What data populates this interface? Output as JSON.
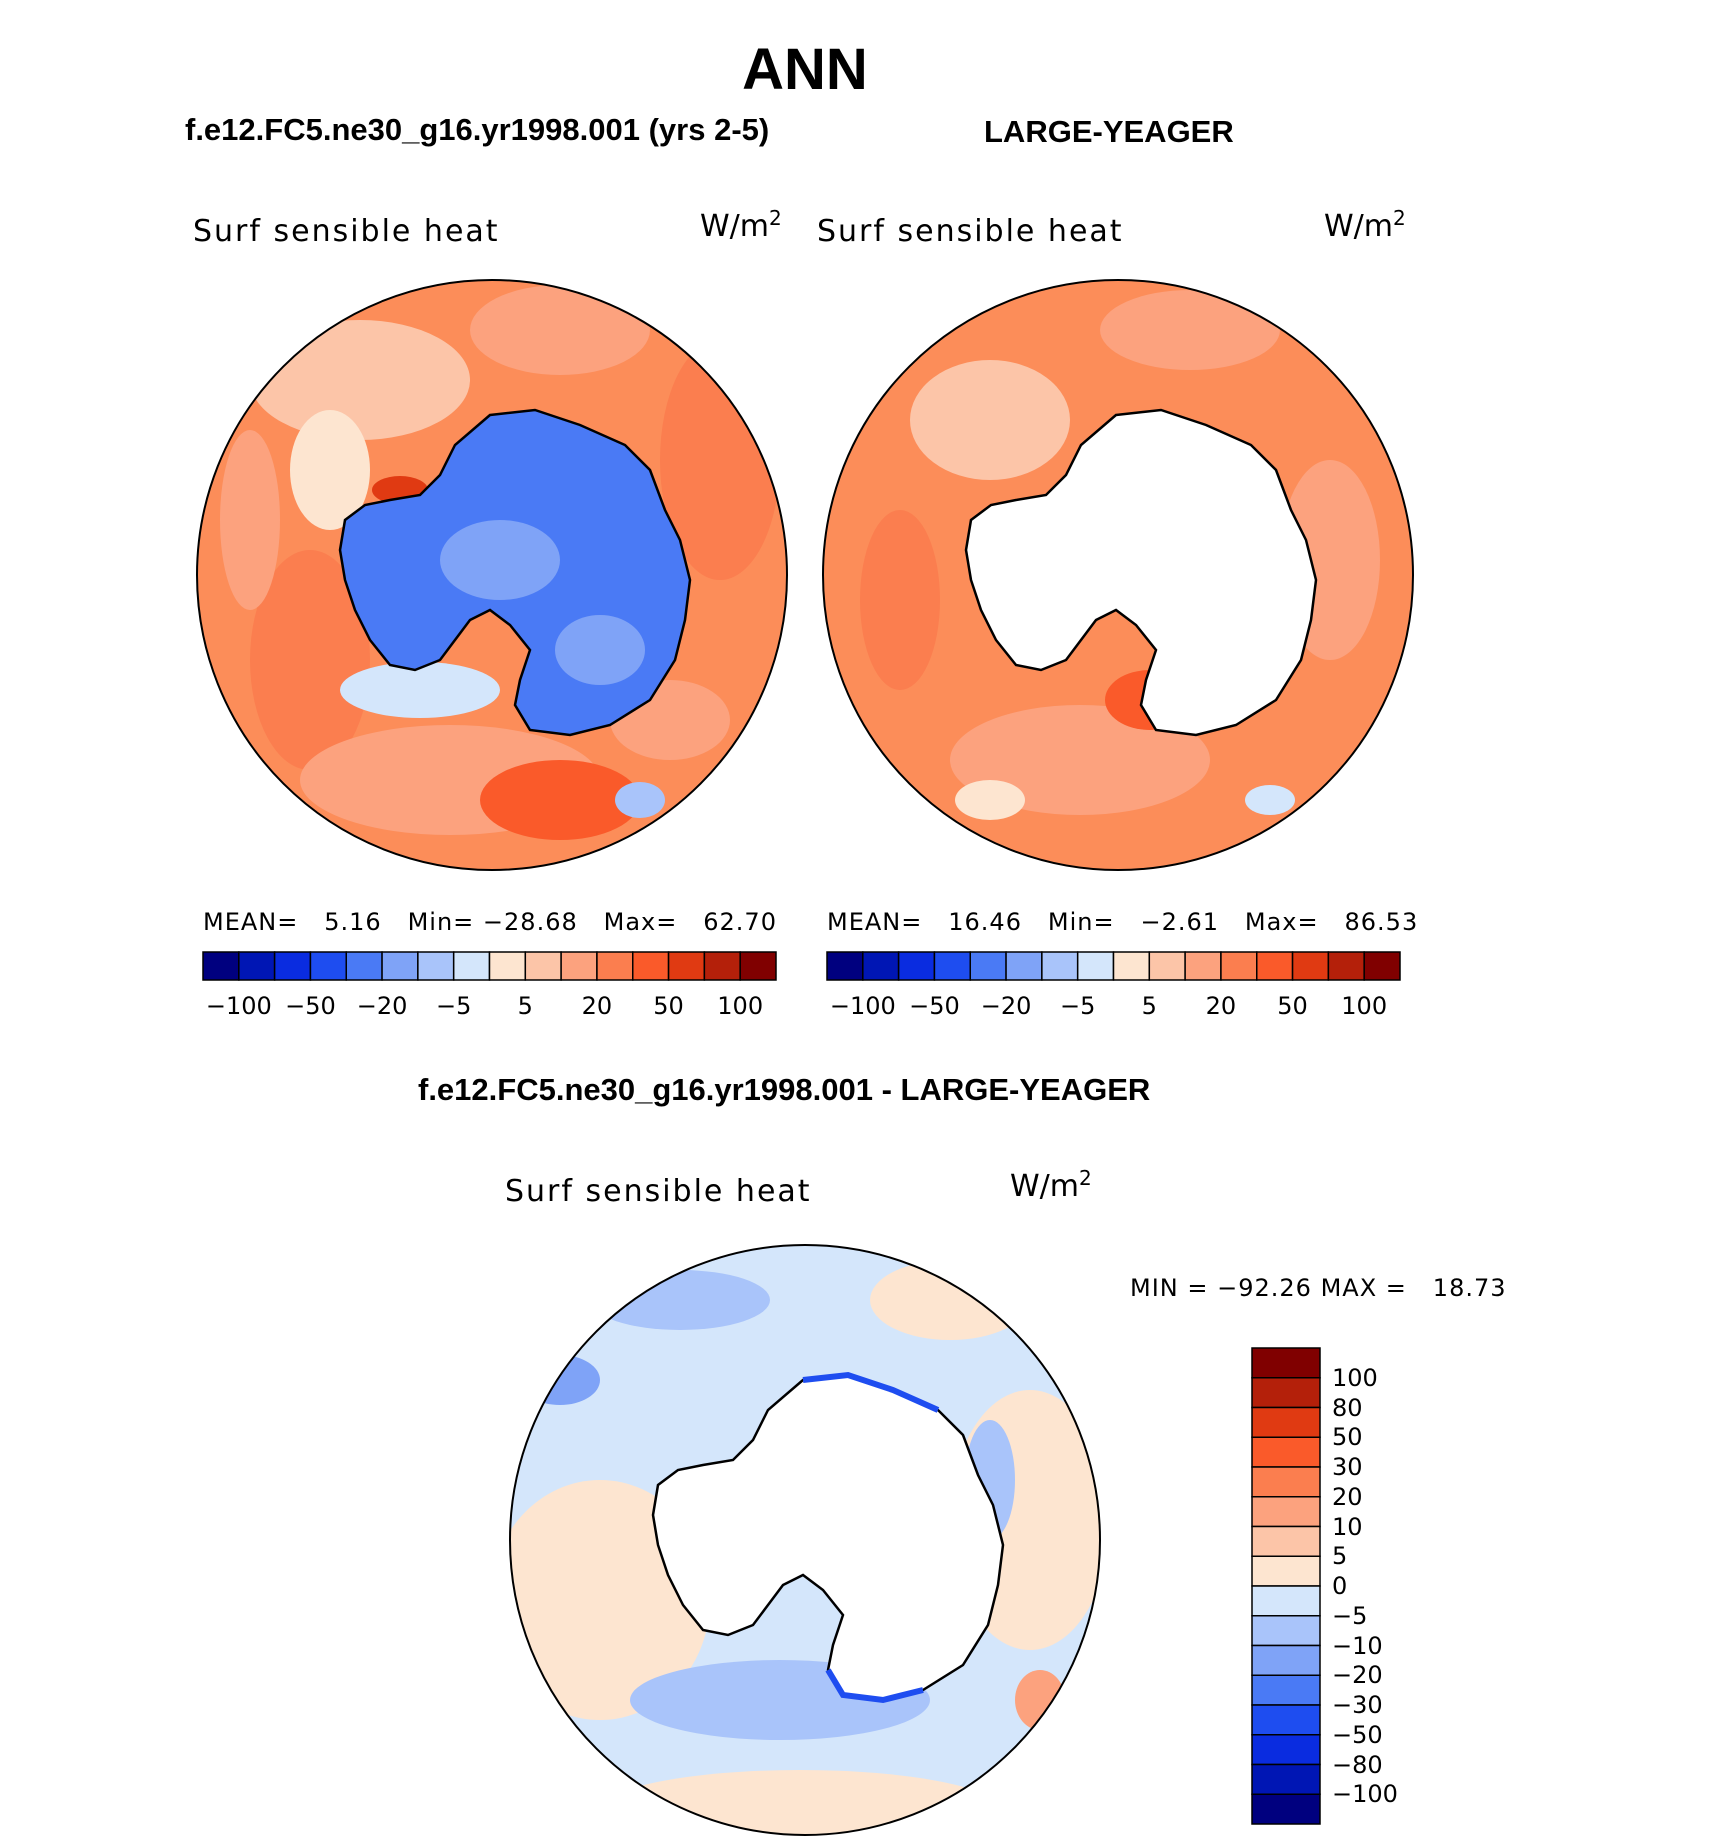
{
  "title": "ANN",
  "panels": [
    {
      "case_title": "f.e12.FC5.ne30_g16.yr1998.001 (yrs 2-5)",
      "variable": "Surf sensible heat",
      "units_base": "W/m",
      "units_exp": "2",
      "stats": {
        "mean_label": "MEAN=",
        "mean": "5.16",
        "min_label": "Min=",
        "min": "−28.68",
        "max_label": "Max=",
        "max": "62.70"
      },
      "ocean_color": "#fc8d59",
      "continent_fill": "#4a7af5"
    },
    {
      "case_title": "LARGE-YEAGER",
      "variable": "Surf sensible heat",
      "units_base": "W/m",
      "units_exp": "2",
      "stats": {
        "mean_label": "MEAN=",
        "mean": "16.46",
        "min_label": "Min=",
        "min": "−2.61",
        "max_label": "Max=",
        "max": "86.53"
      },
      "ocean_color": "#fc8d59",
      "continent_fill": "#ffffff"
    }
  ],
  "top_colorbar": {
    "colors": [
      "#00007f",
      "#0016b4",
      "#0a2ce0",
      "#1e4df0",
      "#4a7af5",
      "#7fa3f7",
      "#a9c4fa",
      "#d4e6fb",
      "#fde5d0",
      "#fcc5a8",
      "#fca27e",
      "#fb7e4f",
      "#fa5a2a",
      "#e03a12",
      "#b4200a",
      "#800000"
    ],
    "tick_labels": [
      "−100",
      "−50",
      "−20",
      "−5",
      "5",
      "20",
      "50",
      "100"
    ]
  },
  "diff_panel": {
    "case_title": "f.e12.FC5.ne30_g16.yr1998.001 - LARGE-YEAGER",
    "variable": "Surf sensible heat",
    "units_base": "W/m",
    "units_exp": "2",
    "stats": {
      "min_label": "MIN =",
      "min": "−92.26",
      "max_label": "MAX =",
      "max": "18.73"
    },
    "ocean_color": "#d4e6fb"
  },
  "diff_colorbar": {
    "colors_top_to_bottom": [
      "#800000",
      "#b4200a",
      "#e03a12",
      "#fa5a2a",
      "#fb7e4f",
      "#fca27e",
      "#fcc5a8",
      "#fde5d0",
      "#d4e6fb",
      "#a9c4fa",
      "#7fa3f7",
      "#4a7af5",
      "#1e4df0",
      "#0a2ce0",
      "#0016b4",
      "#00007f"
    ],
    "tick_labels": [
      "100",
      "80",
      "50",
      "30",
      "20",
      "10",
      "5",
      "0",
      "−5",
      "−10",
      "−20",
      "−30",
      "−50",
      "−80",
      "−100"
    ]
  }
}
